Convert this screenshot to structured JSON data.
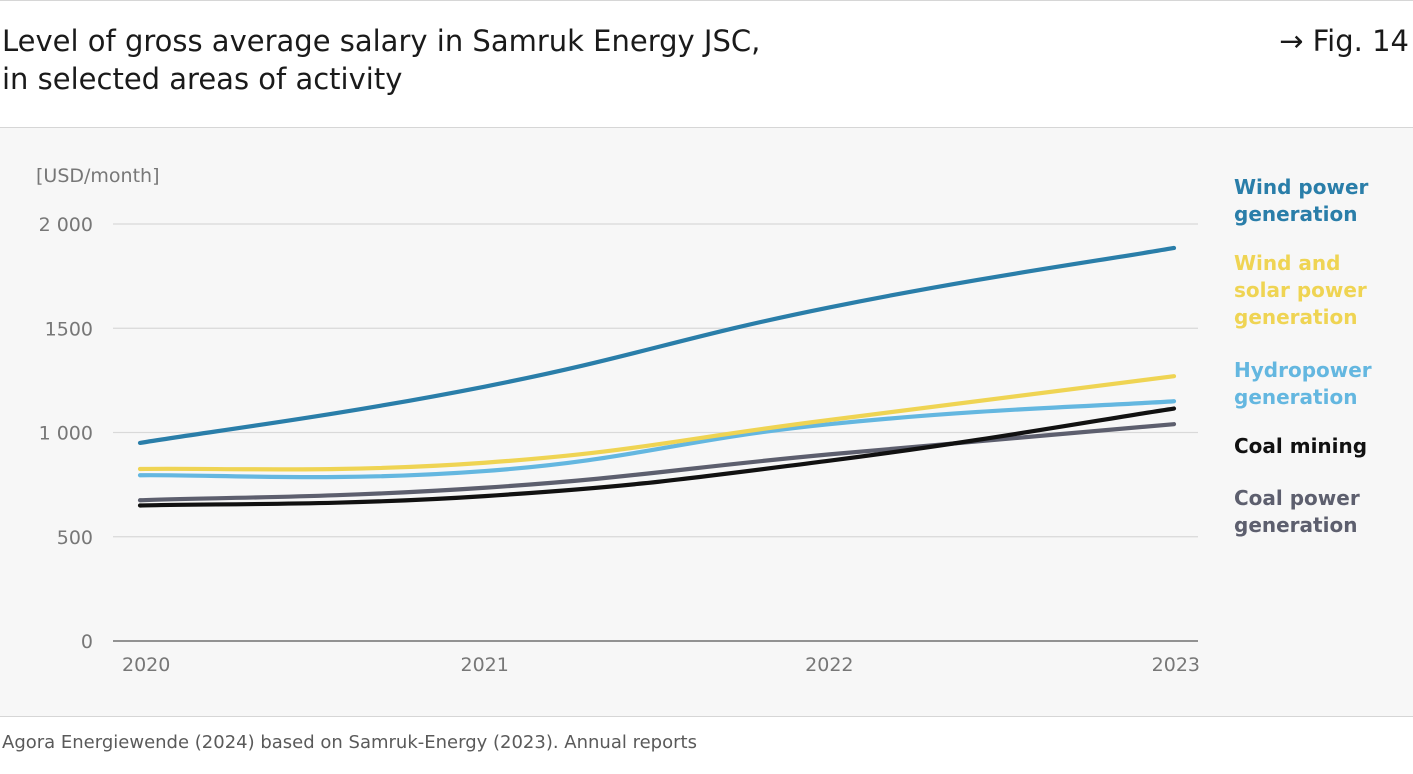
{
  "header": {
    "title_line1": "Level of gross average salary in Samruk Energy JSC,",
    "title_line2": "in selected areas of activity",
    "fig_ref": "→ Fig. 14"
  },
  "source": "Agora Energiewende (2024) based on Samruk-Energy (2023). Annual reports",
  "chart_data": {
    "type": "line",
    "ylabel": "[USD/month]",
    "ylim": [
      0,
      2000
    ],
    "yticks": [
      0,
      500,
      1000,
      1500,
      2000
    ],
    "ytick_labels": [
      "0",
      "500",
      "1 000",
      "1500",
      "2 000"
    ],
    "x": [
      "2020",
      "2021",
      "2022",
      "2023"
    ],
    "grid": true,
    "legend_position": "right",
    "series": [
      {
        "name": "Wind power generation",
        "name_lines": [
          "Wind power",
          "generation"
        ],
        "color": "#2a7ea9",
        "values": [
          950,
          1220,
          1600,
          1885
        ]
      },
      {
        "name": "Wind and solar power generation",
        "name_lines": [
          "Wind and",
          "solar power",
          "generation"
        ],
        "color": "#efd453",
        "values": [
          825,
          855,
          1060,
          1270
        ]
      },
      {
        "name": "Hydropower generation",
        "name_lines": [
          "Hydropower",
          "generation"
        ],
        "color": "#64b7e0",
        "values": [
          795,
          815,
          1040,
          1150
        ]
      },
      {
        "name": "Coal mining",
        "name_lines": [
          "Coal mining"
        ],
        "color": "#111111",
        "values": [
          650,
          695,
          865,
          1115
        ]
      },
      {
        "name": "Coal power generation",
        "name_lines": [
          "Coal power",
          "generation"
        ],
        "color": "#5d5f6e",
        "values": [
          675,
          735,
          895,
          1040
        ]
      }
    ]
  }
}
